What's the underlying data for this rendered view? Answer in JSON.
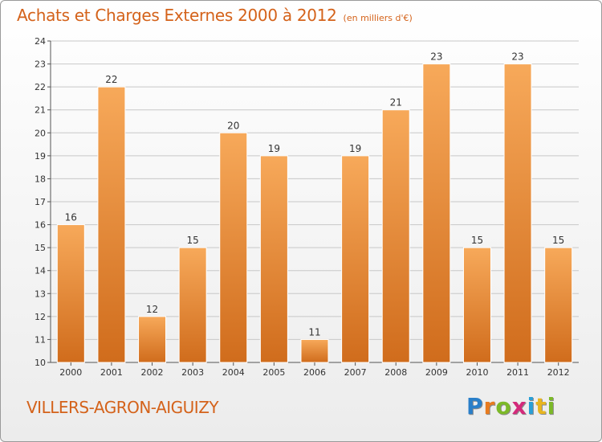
{
  "header": {
    "title": "Achats et Charges Externes 2000 à 2012",
    "unit": "(en milliers d'€)"
  },
  "commune": "VILLERS-AGRON-AIGUIZY",
  "logo": {
    "letters": [
      "P",
      "r",
      "o",
      "x",
      "i",
      "t",
      "i"
    ],
    "colors": [
      "#2a7fc9",
      "#e87b1f",
      "#7cb928",
      "#d42a7b",
      "#2a9fd6",
      "#e8b51f",
      "#7cb928"
    ]
  },
  "colors": {
    "bar_light": "#f7a95a",
    "bar_dark": "#d06c1c",
    "accent": "#d4621a"
  },
  "chart_data": {
    "type": "bar",
    "categories": [
      "2000",
      "2001",
      "2002",
      "2003",
      "2004",
      "2005",
      "2006",
      "2007",
      "2008",
      "2009",
      "2010",
      "2011",
      "2012"
    ],
    "values": [
      16,
      22,
      12,
      15,
      20,
      19,
      11,
      19,
      21,
      23,
      15,
      23,
      15
    ],
    "ylim": [
      10,
      24
    ],
    "yticks": [
      10,
      11,
      12,
      13,
      14,
      15,
      16,
      17,
      18,
      19,
      20,
      21,
      22,
      23,
      24
    ],
    "grid": true,
    "data_labels": true
  }
}
